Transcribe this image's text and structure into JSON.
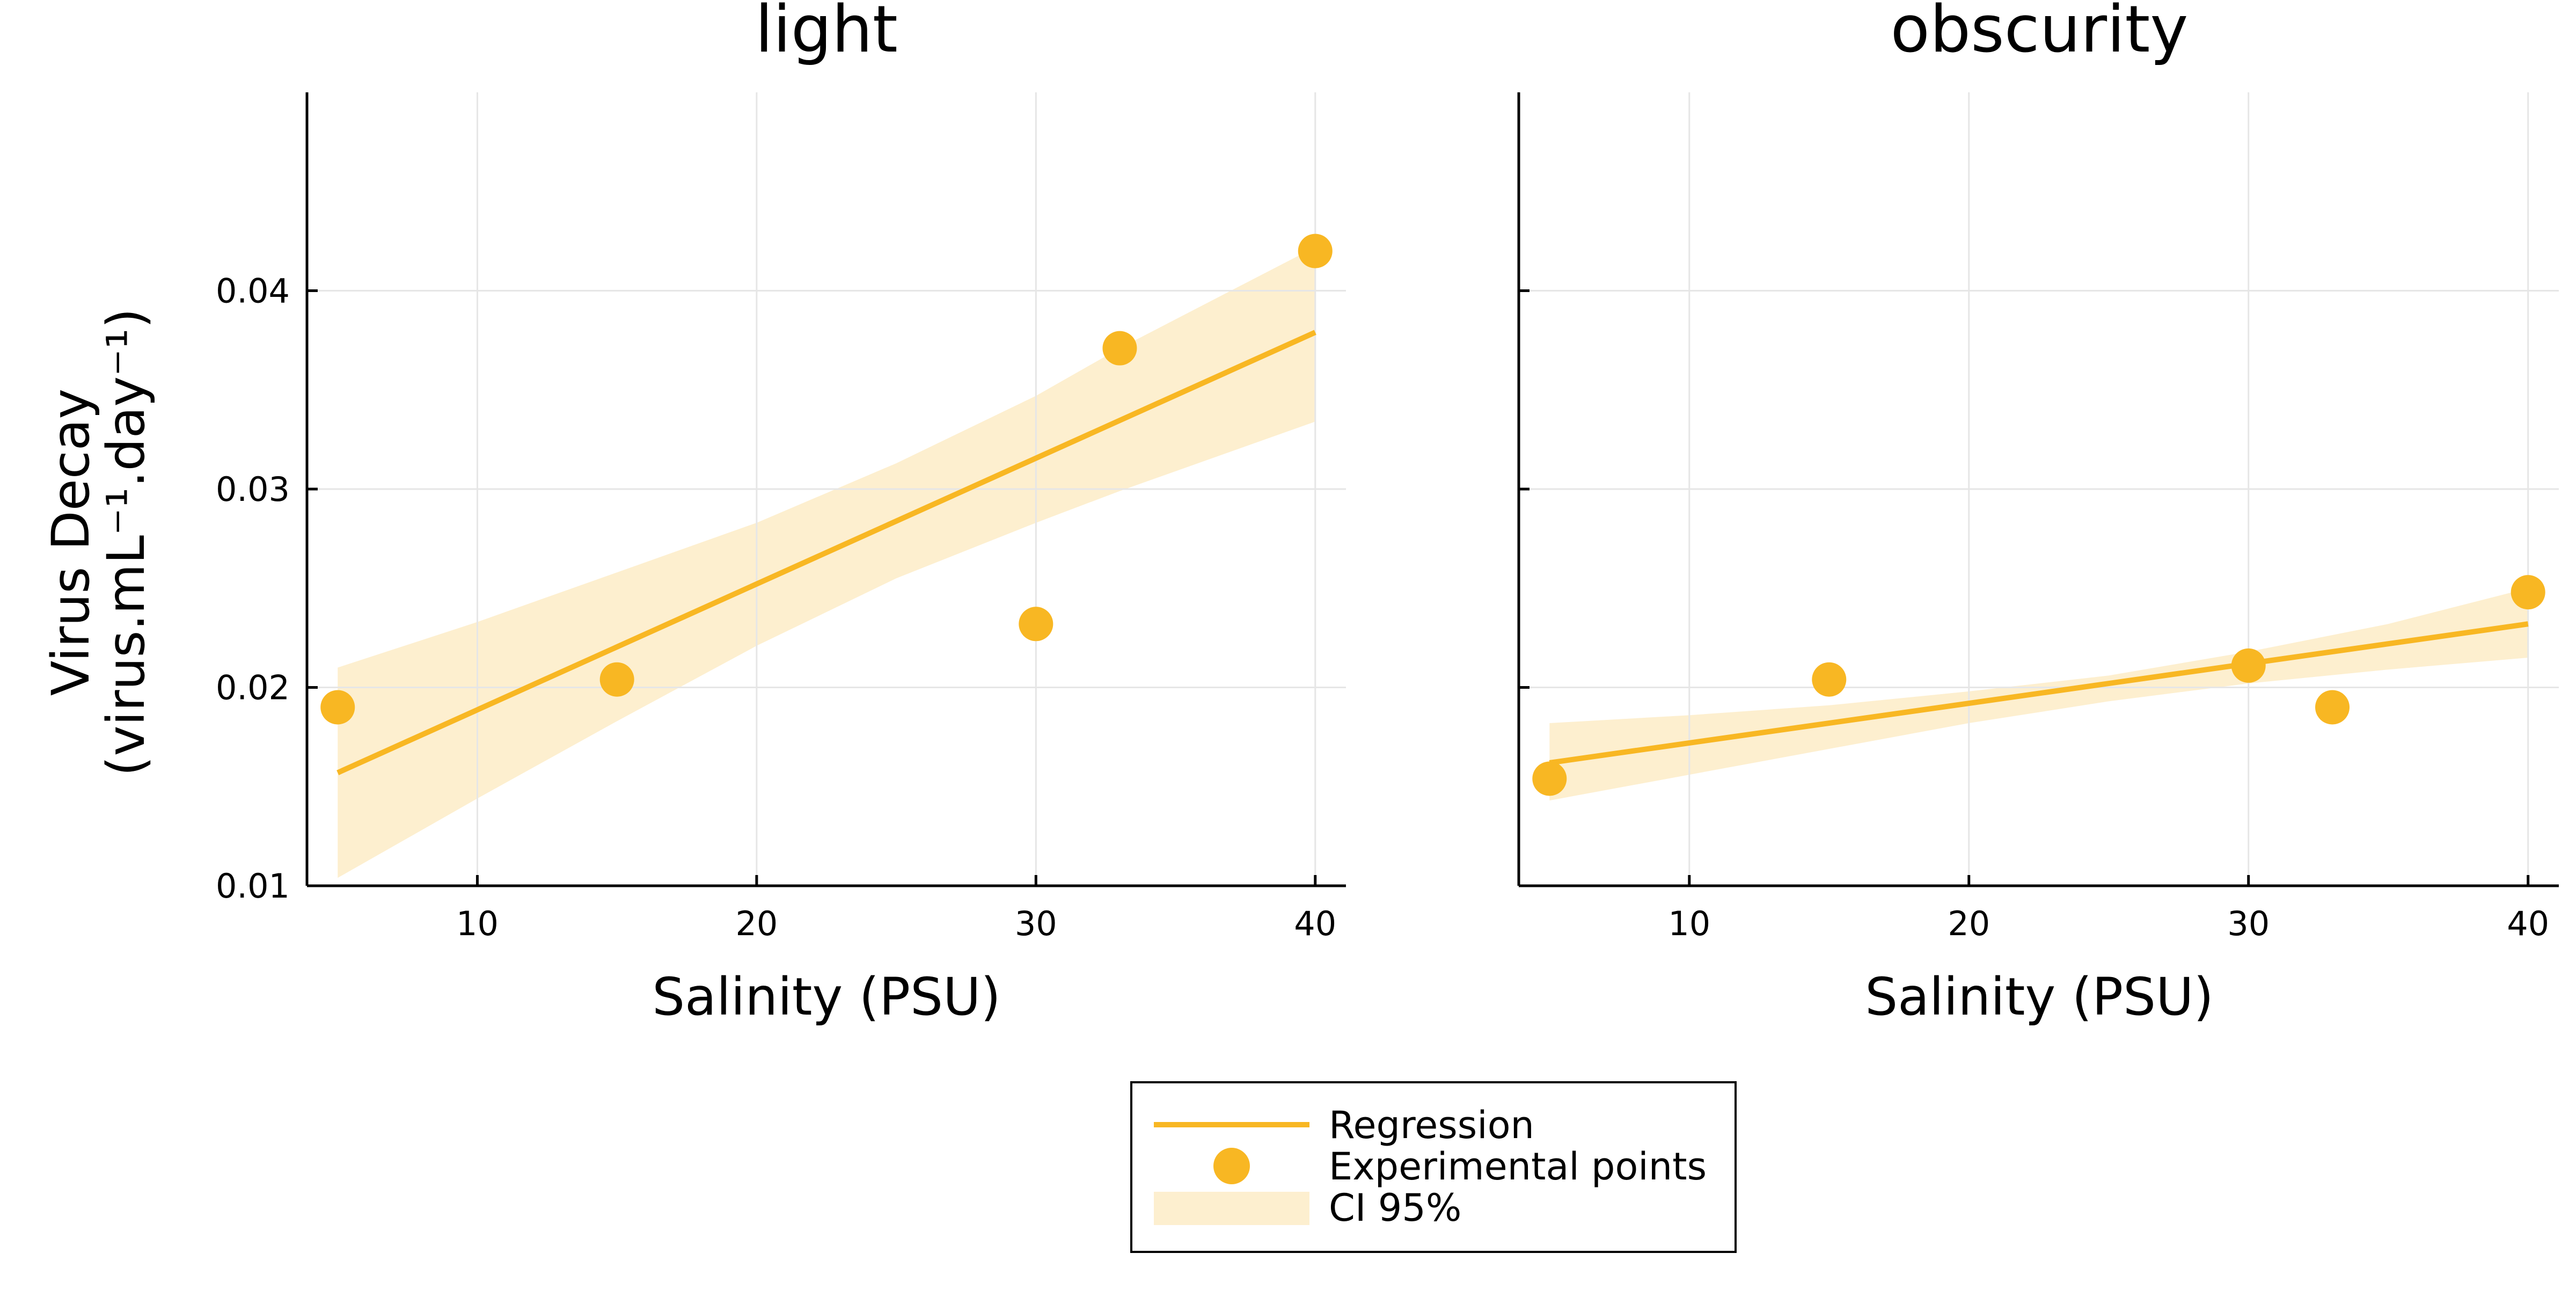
{
  "colors": {
    "series": "#f8b723",
    "ci_fill": "#fdefcf",
    "grid": "#e6e6e6",
    "axis": "#000000"
  },
  "legend": {
    "placement": "bottom-center",
    "items": [
      {
        "label": "Regression",
        "kind": "line"
      },
      {
        "label": "Experimental points",
        "kind": "marker"
      },
      {
        "label": "CI 95%",
        "kind": "band"
      }
    ]
  },
  "chart_data": [
    {
      "type": "scatter",
      "title": "light",
      "xlabel": "Salinity (PSU)",
      "ylabel_line1": "Virus Decay",
      "ylabel_line2": "(virus.mL⁻¹.day⁻¹)",
      "xlim": [
        3.9,
        41.1
      ],
      "ylim": [
        0.01,
        0.05
      ],
      "grid": true,
      "xticks": [
        10,
        20,
        30,
        40
      ],
      "yticks": [
        0.01,
        0.02,
        0.03,
        0.04
      ],
      "ytick_labels": [
        "0.01",
        "0.02",
        "0.03",
        "0.04"
      ],
      "show_ytick_labels": true,
      "points": [
        {
          "x": 5,
          "y": 0.019
        },
        {
          "x": 15,
          "y": 0.0204
        },
        {
          "x": 30,
          "y": 0.0232
        },
        {
          "x": 33,
          "y": 0.0371
        },
        {
          "x": 40,
          "y": 0.042
        }
      ],
      "regression": {
        "x": [
          5,
          40
        ],
        "y": [
          0.0157,
          0.0379
        ]
      },
      "ci": {
        "x": [
          5,
          10,
          15,
          20,
          25,
          30,
          33,
          40
        ],
        "lower": [
          0.0104,
          0.0144,
          0.0183,
          0.0221,
          0.0255,
          0.0283,
          0.0299,
          0.0334
        ],
        "upper": [
          0.021,
          0.0233,
          0.0258,
          0.0283,
          0.0313,
          0.0347,
          0.0371,
          0.0422
        ]
      }
    },
    {
      "type": "scatter",
      "title": "obscurity",
      "xlabel": "Salinity (PSU)",
      "xlim": [
        3.9,
        41.1
      ],
      "ylim": [
        0.01,
        0.05
      ],
      "grid": true,
      "xticks": [
        10,
        20,
        30,
        40
      ],
      "yticks": [
        0.01,
        0.02,
        0.03,
        0.04
      ],
      "show_ytick_labels": false,
      "points": [
        {
          "x": 5,
          "y": 0.0154
        },
        {
          "x": 15,
          "y": 0.0204
        },
        {
          "x": 30,
          "y": 0.0211
        },
        {
          "x": 33,
          "y": 0.019
        },
        {
          "x": 40,
          "y": 0.0248
        }
      ],
      "regression": {
        "x": [
          5,
          40
        ],
        "y": [
          0.0162,
          0.0232
        ]
      },
      "ci": {
        "x": [
          5,
          10,
          15,
          20,
          25,
          30,
          35,
          40
        ],
        "lower": [
          0.0143,
          0.0156,
          0.0169,
          0.0182,
          0.0193,
          0.0202,
          0.0209,
          0.0215
        ],
        "upper": [
          0.0182,
          0.0186,
          0.0191,
          0.0198,
          0.0206,
          0.0218,
          0.0232,
          0.025
        ]
      }
    }
  ]
}
